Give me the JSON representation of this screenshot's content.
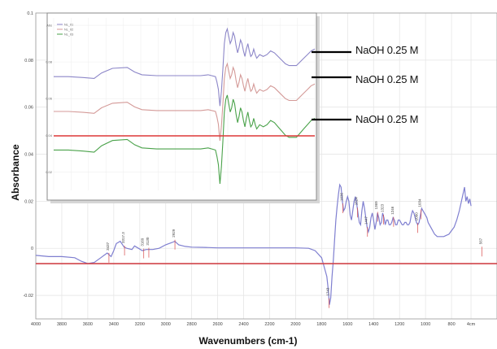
{
  "chart_data": [
    {
      "type": "line",
      "role": "main-spectrum",
      "xlabel": "Wavenumbers (cm-1)",
      "ylabel": "Absorbance",
      "x_reversed": true,
      "xlim": [
        4000,
        450
      ],
      "ylim": [
        -0.03,
        0.1
      ],
      "x_ticks": [
        "4000",
        "3800",
        "3600",
        "3400",
        "3200",
        "3000",
        "2800",
        "2600",
        "2400",
        "2200",
        "2000",
        "1800",
        "1600",
        "1400",
        "1200",
        "1000",
        "800",
        "4cm"
      ],
      "x_tick_values": [
        4000,
        3800,
        3600,
        3400,
        3200,
        3000,
        2800,
        2600,
        2400,
        2200,
        2000,
        1800,
        1600,
        1400,
        1200,
        1000,
        800,
        650
      ],
      "y_ticks": [
        "0.1",
        "0.08",
        "0.06",
        "0.04",
        "0.02",
        "0",
        "-0.02"
      ],
      "y_tick_values": [
        0.1,
        0.08,
        0.06,
        0.04,
        0.02,
        0,
        -0.02
      ],
      "grid": true,
      "baseline_y": -0.0065,
      "baseline_color": "#d0444a",
      "series": [
        {
          "color": "#7f7fd0",
          "x": [
            4000,
            3900,
            3800,
            3700,
            3650,
            3600,
            3550,
            3500,
            3450,
            3420,
            3400,
            3380,
            3350,
            3320,
            3300,
            3260,
            3240,
            3210,
            3180,
            3150,
            3100,
            3050,
            3000,
            2950,
            2930,
            2900,
            2850,
            2800,
            2700,
            2600,
            2500,
            2400,
            2300,
            2200,
            2100,
            2000,
            1900,
            1850,
            1800,
            1780,
            1760,
            1750,
            1740,
            1730,
            1720,
            1710,
            1700,
            1690,
            1680,
            1670,
            1660,
            1650,
            1640,
            1630,
            1620,
            1610,
            1600,
            1590,
            1580,
            1570,
            1560,
            1550,
            1540,
            1530,
            1520,
            1510,
            1500,
            1490,
            1480,
            1470,
            1460,
            1450,
            1440,
            1430,
            1420,
            1410,
            1400,
            1390,
            1380,
            1370,
            1360,
            1350,
            1340,
            1330,
            1320,
            1310,
            1300,
            1290,
            1280,
            1270,
            1260,
            1250,
            1240,
            1230,
            1220,
            1210,
            1200,
            1190,
            1180,
            1170,
            1160,
            1150,
            1140,
            1130,
            1120,
            1110,
            1100,
            1090,
            1080,
            1070,
            1060,
            1050,
            1040,
            1030,
            1020,
            1010,
            1000,
            990,
            980,
            970,
            960,
            950,
            940,
            930,
            920,
            910,
            900,
            880,
            860,
            840,
            820,
            800,
            780,
            760,
            740,
            720,
            700,
            690,
            680,
            670,
            660,
            650
          ],
          "y": [
            -0.003,
            -0.0035,
            -0.0035,
            -0.004,
            -0.0055,
            -0.0065,
            -0.006,
            -0.004,
            -0.002,
            -0.0035,
            -0.001,
            0.002,
            0.003,
            0.0005,
            0.0,
            -0.0005,
            0.001,
            0.0,
            -0.001,
            -0.0005,
            -0.0005,
            0.0,
            0.0015,
            0.0025,
            0.003,
            0.0015,
            0.0008,
            0.0005,
            0.0004,
            0.0002,
            0.0002,
            0.0002,
            0.0002,
            0.0002,
            0.0002,
            0.0002,
            0.0,
            -0.001,
            -0.004,
            -0.008,
            -0.012,
            -0.017,
            -0.024,
            -0.021,
            -0.012,
            -0.005,
            0.004,
            0.012,
            0.018,
            0.023,
            0.027,
            0.026,
            0.02,
            0.016,
            0.017,
            0.02,
            0.022,
            0.02,
            0.014,
            0.012,
            0.016,
            0.02,
            0.022,
            0.019,
            0.015,
            0.011,
            0.01,
            0.016,
            0.02,
            0.017,
            0.013,
            0.009,
            0.007,
            0.009,
            0.013,
            0.015,
            0.012,
            0.008,
            0.011,
            0.015,
            0.013,
            0.01,
            0.011,
            0.015,
            0.013,
            0.01,
            0.012,
            0.012,
            0.01,
            0.01,
            0.011,
            0.013,
            0.012,
            0.01,
            0.01,
            0.012,
            0.012,
            0.011,
            0.01,
            0.01,
            0.011,
            0.011,
            0.01,
            0.01,
            0.011,
            0.014,
            0.016,
            0.015,
            0.013,
            0.011,
            0.01,
            0.011,
            0.014,
            0.017,
            0.016,
            0.015,
            0.014,
            0.013,
            0.011,
            0.01,
            0.009,
            0.008,
            0.007,
            0.006,
            0.0055,
            0.005,
            0.005,
            0.005,
            0.005,
            0.0055,
            0.006,
            0.0075,
            0.009,
            0.012,
            0.016,
            0.021,
            0.026,
            0.02,
            0.022,
            0.019,
            0.021,
            0.018
          ]
        }
      ],
      "annotations": [
        "3437",
        "3317.3",
        "3169",
        "3130",
        "2929",
        "1743",
        "1636",
        "1524",
        "1447",
        "1369",
        "1323",
        "1246",
        "1060",
        "1034",
        "567"
      ],
      "annotation_x": [
        3437,
        3317,
        3169,
        3130,
        2929,
        1743,
        1636,
        1524,
        1447,
        1369,
        1323,
        1246,
        1060,
        1034,
        567
      ]
    },
    {
      "type": "line",
      "role": "inset-spectra",
      "title": "",
      "xlim": [
        4000,
        450
      ],
      "x_reversed": true,
      "y_ticks": [
        "Abs",
        "0.08",
        "0.06",
        "0.04",
        "0.02"
      ],
      "legend": [
        "NL_01",
        "NL_02",
        "NL_03"
      ],
      "legend_position": "top-left",
      "baseline_color": "#e03a3a",
      "series": [
        {
          "name": "NL_01",
          "color": "#8c86c8",
          "label": "NaOH 0.25 M",
          "offset": 0.072
        },
        {
          "name": "NL_02",
          "color": "#d49a98",
          "label": "NaOH 0.25 M",
          "offset": 0.053
        },
        {
          "name": "NL_03",
          "color": "#4aa24a",
          "label": "NaOH 0.25 M",
          "offset": 0.032
        }
      ],
      "x": [
        4000,
        3800,
        3600,
        3450,
        3350,
        3200,
        3000,
        2900,
        2800,
        2600,
        2400,
        2200,
        2000,
        1900,
        1800,
        1780,
        1760,
        1750,
        1740,
        1720,
        1700,
        1680,
        1660,
        1640,
        1620,
        1600,
        1580,
        1560,
        1540,
        1520,
        1500,
        1480,
        1460,
        1440,
        1420,
        1400,
        1380,
        1360,
        1340,
        1320,
        1300,
        1280,
        1260,
        1240,
        1220,
        1200,
        1150,
        1100,
        1050,
        1000,
        950,
        900,
        850,
        800,
        750,
        700,
        650,
        600,
        550,
        500,
        450
      ],
      "shape": [
        0.0,
        0.0,
        -0.0005,
        -0.001,
        0.002,
        0.0045,
        0.005,
        0.0025,
        0.001,
        0.0005,
        0.0005,
        0.0005,
        0.0005,
        0.001,
        0.0,
        -0.003,
        -0.007,
        -0.012,
        -0.016,
        -0.008,
        0.004,
        0.018,
        0.024,
        0.026,
        0.022,
        0.018,
        0.02,
        0.024,
        0.022,
        0.017,
        0.013,
        0.016,
        0.02,
        0.018,
        0.014,
        0.011,
        0.015,
        0.018,
        0.014,
        0.011,
        0.012,
        0.015,
        0.012,
        0.01,
        0.011,
        0.012,
        0.011,
        0.012,
        0.014,
        0.013,
        0.011,
        0.009,
        0.007,
        0.006,
        0.006,
        0.006,
        0.008,
        0.01,
        0.012,
        0.014,
        0.015
      ]
    }
  ],
  "labels": {
    "ylabel": "Absorbance",
    "xlabel": "Wavenumbers (cm-1)",
    "naoh_1": "NaOH 0.25 M",
    "naoh_2": "NaOH 0.25 M",
    "naoh_3": "NaOH 0.25 M"
  }
}
